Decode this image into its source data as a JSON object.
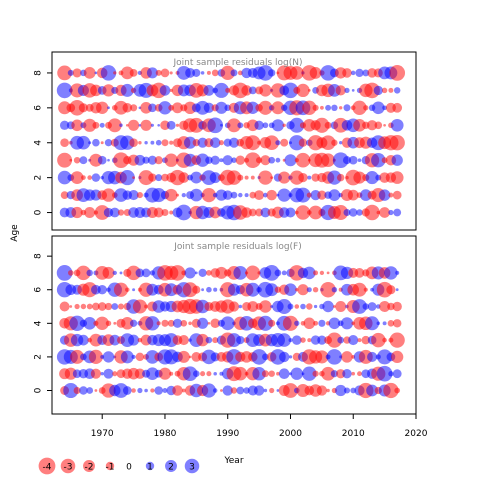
{
  "chart_data": {
    "type": "scatter",
    "ylabel": "Age",
    "xlabel": "Year",
    "colors": {
      "positive": "#0000ff",
      "negative": "#ff0000"
    },
    "x_ticks": [
      1970,
      1980,
      1990,
      2000,
      2010,
      2020
    ],
    "x_range": [
      1962,
      2020
    ],
    "years": [
      1964,
      2017
    ],
    "panels": [
      {
        "title": "Joint sample residuals log(N)",
        "ages": [
          0,
          1,
          2,
          3,
          4,
          5,
          6,
          7,
          8
        ],
        "y_ticks": [
          0,
          2,
          4,
          6,
          8
        ],
        "y_range": [
          -1,
          9.2
        ]
      },
      {
        "title": "Joint sample residuals log(F)",
        "ages": [
          0,
          1,
          2,
          3,
          4,
          5,
          6,
          7
        ],
        "y_ticks": [
          0,
          2,
          4,
          6,
          8
        ],
        "y_range": [
          -1.4,
          9.2
        ]
      }
    ],
    "legend": [
      {
        "label": "-4",
        "value": -4
      },
      {
        "label": "-3",
        "value": -3
      },
      {
        "label": "-2",
        "value": -2
      },
      {
        "label": "-1",
        "value": -1
      },
      {
        "label": "0",
        "value": 0
      },
      {
        "label": "1",
        "value": 1
      },
      {
        "label": "2",
        "value": 2
      },
      {
        "label": "3",
        "value": 3
      }
    ]
  }
}
